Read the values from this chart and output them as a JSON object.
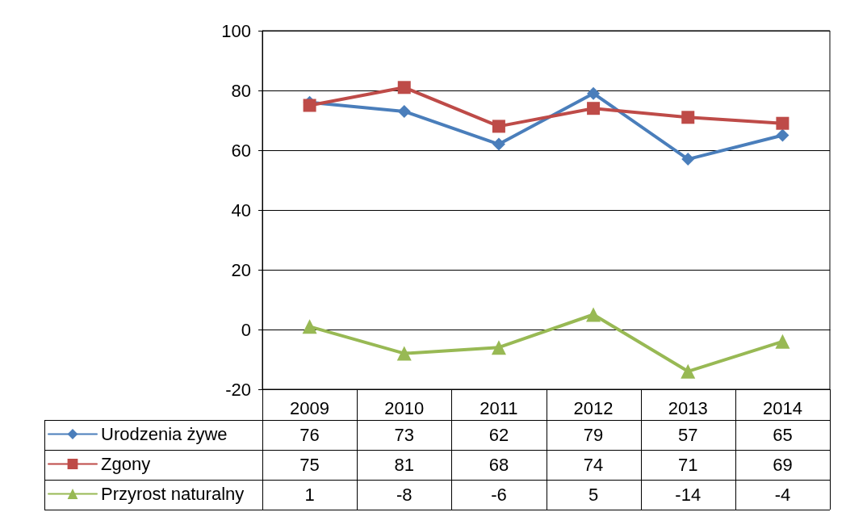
{
  "chart_data": {
    "type": "line",
    "categories": [
      "2009",
      "2010",
      "2011",
      "2012",
      "2013",
      "2014"
    ],
    "series": [
      {
        "name": "Urodzenia żywe",
        "color": "#4a7ebb",
        "marker": "diamond",
        "values": [
          76,
          73,
          62,
          79,
          57,
          65
        ]
      },
      {
        "name": "Zgony",
        "color": "#be4b48",
        "marker": "square",
        "values": [
          75,
          81,
          68,
          74,
          71,
          69
        ]
      },
      {
        "name": "Przyrost naturalny",
        "color": "#98b954",
        "marker": "triangle",
        "values": [
          1,
          -8,
          -6,
          5,
          -14,
          -4
        ]
      }
    ],
    "ylim": [
      -20,
      100
    ],
    "yticks": [
      -20,
      0,
      20,
      40,
      60,
      80,
      100
    ],
    "grid": "y",
    "legend": "bottom",
    "data_labels": true,
    "line_style": "solid"
  }
}
